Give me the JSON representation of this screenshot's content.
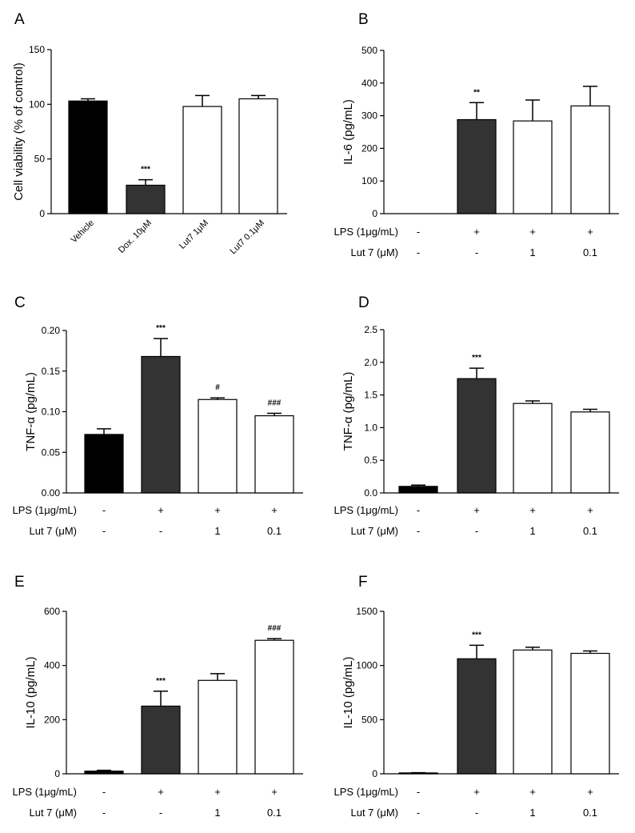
{
  "chart_data": [
    {
      "panel": "A",
      "type": "bar",
      "ylabel": "Cell viability (% of control)",
      "ylim": [
        0,
        150
      ],
      "yticks": [
        "0",
        "50",
        "100",
        "150"
      ],
      "categories": [
        "Vehicle",
        "Dox. 10μM",
        "Lut7 1μM",
        "Lut7 0.1μM"
      ],
      "values": [
        103,
        26,
        98,
        105
      ],
      "errors": [
        2,
        5,
        10,
        3
      ],
      "colors": [
        "#000000",
        "#333333",
        "#ffffff",
        "#ffffff"
      ],
      "annotations": [
        "",
        "***",
        "",
        ""
      ],
      "rows": []
    },
    {
      "panel": "B",
      "type": "bar",
      "ylabel": "IL-6 (pg/mL)",
      "ylim": [
        0,
        500
      ],
      "yticks": [
        "0",
        "100",
        "200",
        "300",
        "400",
        "500"
      ],
      "values": [
        0,
        288,
        284,
        330
      ],
      "errors": [
        0,
        52,
        64,
        60
      ],
      "colors": [
        "#000000",
        "#333333",
        "#ffffff",
        "#ffffff"
      ],
      "annotations": [
        "",
        "**",
        "",
        ""
      ],
      "rows": [
        {
          "label": "LPS (1μg/mL)",
          "cells": [
            "-",
            "+",
            "+",
            "+"
          ]
        },
        {
          "label": "Lut 7 (μM)",
          "cells": [
            "-",
            "-",
            "1",
            "0.1"
          ]
        }
      ]
    },
    {
      "panel": "C",
      "type": "bar",
      "ylabel": "TNF-α (pg/mL)",
      "ylim": [
        0,
        0.2
      ],
      "yticks": [
        "0.00",
        "0.05",
        "0.10",
        "0.15",
        "0.20"
      ],
      "values": [
        0.072,
        0.168,
        0.115,
        0.095
      ],
      "errors": [
        0.007,
        0.022,
        0.002,
        0.003
      ],
      "colors": [
        "#000000",
        "#333333",
        "#ffffff",
        "#ffffff"
      ],
      "annotations": [
        "",
        "***",
        "#",
        "###"
      ],
      "rows": [
        {
          "label": "LPS (1μg/mL)",
          "cells": [
            "-",
            "+",
            "+",
            "+"
          ]
        },
        {
          "label": "Lut 7 (μM)",
          "cells": [
            "-",
            "-",
            "1",
            "0.1"
          ]
        }
      ]
    },
    {
      "panel": "D",
      "type": "bar",
      "ylabel": "TNF-α (pg/mL)",
      "ylim": [
        0,
        2.5
      ],
      "yticks": [
        "0.0",
        "0.5",
        "1.0",
        "1.5",
        "2.0",
        "2.5"
      ],
      "values": [
        0.1,
        1.75,
        1.37,
        1.24
      ],
      "errors": [
        0.02,
        0.16,
        0.04,
        0.04
      ],
      "colors": [
        "#000000",
        "#333333",
        "#ffffff",
        "#ffffff"
      ],
      "annotations": [
        "",
        "***",
        "",
        ""
      ],
      "rows": [
        {
          "label": "LPS (1μg/mL)",
          "cells": [
            "-",
            "+",
            "+",
            "+"
          ]
        },
        {
          "label": "Lut 7 (μM)",
          "cells": [
            "-",
            "-",
            "1",
            "0.1"
          ]
        }
      ]
    },
    {
      "panel": "E",
      "type": "bar",
      "ylabel": "IL-10 (pg/mL)",
      "ylim": [
        0,
        600
      ],
      "yticks": [
        "0",
        "200",
        "400",
        "600"
      ],
      "values": [
        10,
        250,
        345,
        493
      ],
      "errors": [
        3,
        55,
        25,
        6
      ],
      "colors": [
        "#000000",
        "#333333",
        "#ffffff",
        "#ffffff"
      ],
      "annotations": [
        "",
        "***",
        "",
        "###"
      ],
      "rows": [
        {
          "label": "LPS (1μg/mL)",
          "cells": [
            "-",
            "+",
            "+",
            "+"
          ]
        },
        {
          "label": "Lut 7 (μM)",
          "cells": [
            "-",
            "-",
            "1",
            "0.1"
          ]
        }
      ]
    },
    {
      "panel": "F",
      "type": "bar",
      "ylabel": "IL-10 (pg/mL)",
      "ylim": [
        0,
        1500
      ],
      "yticks": [
        "0",
        "500",
        "1000",
        "1500"
      ],
      "values": [
        8,
        1062,
        1143,
        1112
      ],
      "errors": [
        2,
        125,
        25,
        22
      ],
      "colors": [
        "#000000",
        "#333333",
        "#ffffff",
        "#ffffff"
      ],
      "annotations": [
        "",
        "***",
        "",
        ""
      ],
      "rows": [
        {
          "label": "LPS (1μg/mL)",
          "cells": [
            "-",
            "+",
            "+",
            "+"
          ]
        },
        {
          "label": "Lut 7 (μM)",
          "cells": [
            "-",
            "-",
            "1",
            "0.1"
          ]
        }
      ]
    }
  ]
}
